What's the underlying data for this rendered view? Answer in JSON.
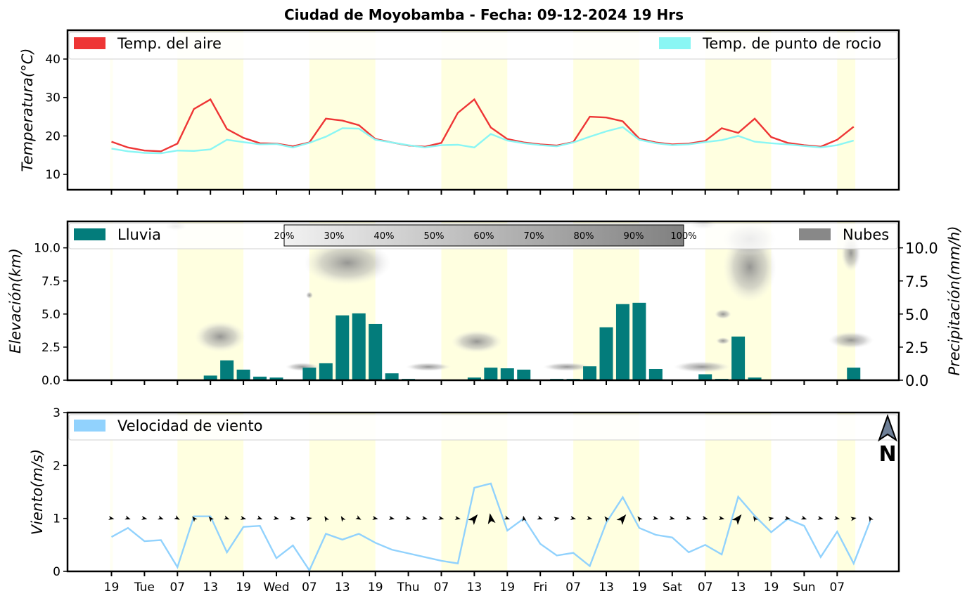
{
  "title": "Ciudad de Moyobamba   -   Fecha: 09-12-2024 19 Hrs",
  "x_ticks": [
    "19",
    "Tue",
    "07",
    "13",
    "19",
    "Wed",
    "07",
    "13",
    "19",
    "Thu",
    "07",
    "13",
    "19",
    "Fri",
    "07",
    "13",
    "19",
    "Sat",
    "07",
    "13",
    "19",
    "Sun",
    "07"
  ],
  "colors": {
    "air": "#ee3535",
    "dew": "#8af6f4",
    "rain": "#037c7b",
    "clouds": "#888888",
    "wind": "#91d2fd",
    "day": "#ffffe0"
  },
  "chart_data": [
    {
      "type": "line",
      "ylabel": "Temperatura(°C)",
      "ylim": [
        6,
        47.5
      ],
      "yticks": [
        "10",
        "20",
        "30",
        "40"
      ],
      "x_index": "one value per 3-hour step starting 19 Hrs",
      "series": [
        {
          "name": "Temp. del aire",
          "values": [
            18.5,
            17,
            16.2,
            16,
            18,
            27,
            29.5,
            21.8,
            19.5,
            18.1,
            18,
            17.3,
            18.3,
            24.5,
            24,
            22.8,
            19.2,
            18.3,
            17.5,
            17.2,
            18.2,
            26,
            29.5,
            22.2,
            19.2,
            18.3,
            17.8,
            17.5,
            18.4,
            25,
            24.8,
            23.8,
            19.3,
            18.3,
            17.8,
            18,
            18.7,
            22,
            20.8,
            24.5,
            19.7,
            18.2,
            17.6,
            17.2,
            19,
            22.4
          ]
        },
        {
          "name": "Temp. de punto de rocio",
          "values": [
            16.7,
            16,
            15.6,
            15.5,
            16.2,
            16.1,
            16.5,
            19,
            18.4,
            17.8,
            17.9,
            17,
            18.2,
            19.8,
            22,
            21.9,
            19,
            18.3,
            17.6,
            17,
            17.6,
            17.7,
            17,
            20.5,
            18.8,
            18.1,
            17.6,
            17.3,
            18.3,
            19.8,
            21.2,
            22.3,
            19,
            18.1,
            17.6,
            17.8,
            18.4,
            18.9,
            20,
            18.5,
            18.1,
            17.8,
            17.4,
            17,
            17.6,
            18.8
          ]
        }
      ]
    },
    {
      "type": "bar",
      "ylabel": "Elevación(km)",
      "ylabel_right": "Precipitación(mm/h)",
      "ylim": [
        0,
        12
      ],
      "yticks": [
        "0.0",
        "2.5",
        "5.0",
        "7.5",
        "10.0"
      ],
      "series": [
        {
          "name": "Lluvia",
          "values": [
            0,
            0,
            0,
            0,
            0,
            0,
            0.35,
            1.5,
            0.8,
            0.27,
            0.2,
            0,
            0.95,
            1.28,
            4.9,
            5.05,
            4.25,
            0.52,
            0.1,
            0,
            0,
            0,
            0.2,
            0.95,
            0.9,
            0.8,
            0,
            0.1,
            0.1,
            1.05,
            4,
            5.75,
            5.85,
            0.85,
            0,
            0,
            0.45,
            0.1,
            3.3,
            0.2,
            0,
            0,
            0,
            0,
            0,
            0.95
          ]
        },
        {
          "name": "Nubes",
          "values": []
        }
      ],
      "colorbar": [
        "20%",
        "30%",
        "40%",
        "50%",
        "60%",
        "70%",
        "80%",
        "90%",
        "100%"
      ]
    },
    {
      "type": "line",
      "ylabel": "Viento(m/s)",
      "ylim": [
        0,
        3
      ],
      "yticks": [
        "0",
        "1",
        "2",
        "3"
      ],
      "series": [
        {
          "name": "Velocidad de viento",
          "values": [
            0.65,
            0.82,
            0.57,
            0.59,
            0.08,
            1.04,
            1.04,
            0.36,
            0.84,
            0.86,
            0.25,
            0.49,
            0.02,
            0.71,
            0.6,
            0.71,
            0.54,
            0.41,
            0.34,
            0.27,
            0.2,
            0.15,
            1.58,
            1.66,
            0.77,
            1.0,
            0.52,
            0.3,
            0.35,
            0.1,
            0.92,
            1.4,
            0.82,
            0.69,
            0.64,
            0.36,
            0.5,
            0.32,
            1.41,
            1.05,
            0.74,
            0.99,
            0.86,
            0.27,
            0.75,
            0.15,
            0.95
          ]
        }
      ]
    }
  ],
  "north_label": "N"
}
